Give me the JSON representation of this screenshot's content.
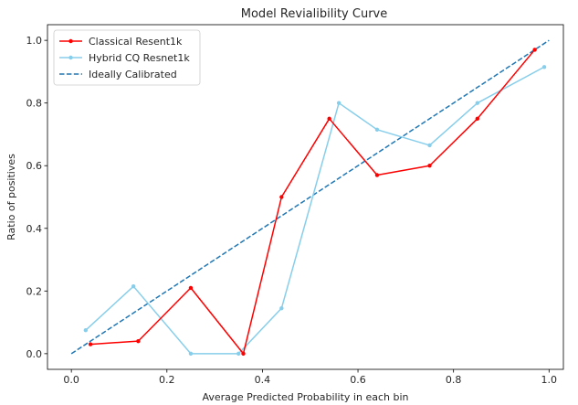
{
  "chart_data": {
    "type": "line",
    "title": "Model Revialibility Curve",
    "xlabel": "Average Predicted Probability in each bin",
    "ylabel": "Ratio of positives",
    "xlim": [
      -0.05,
      1.03
    ],
    "ylim": [
      -0.05,
      1.05
    ],
    "xticks": [
      0.0,
      0.2,
      0.4,
      0.6,
      0.8,
      1.0
    ],
    "xtick_labels": [
      "0.0",
      "0.2",
      "0.4",
      "0.6",
      "0.8",
      "1.0"
    ],
    "yticks": [
      0.0,
      0.2,
      0.4,
      0.6,
      0.8,
      1.0
    ],
    "ytick_labels": [
      "0.0",
      "0.2",
      "0.4",
      "0.6",
      "0.8",
      "1.0"
    ],
    "grid": false,
    "legend_position": "top-left",
    "series": [
      {
        "name": "Classical Resent1k",
        "color": "#ff0000",
        "style": "solid",
        "marker": "dot",
        "x": [
          0.04,
          0.14,
          0.25,
          0.36,
          0.44,
          0.54,
          0.64,
          0.75,
          0.85,
          0.97
        ],
        "y": [
          0.03,
          0.04,
          0.21,
          0.0,
          0.5,
          0.75,
          0.57,
          0.6,
          0.75,
          0.97
        ]
      },
      {
        "name": "Hybrid CQ Resnet1k",
        "color": "#87ceeb",
        "style": "solid",
        "marker": "dot",
        "x": [
          0.03,
          0.13,
          0.25,
          0.35,
          0.44,
          0.56,
          0.64,
          0.75,
          0.85,
          0.99
        ],
        "y": [
          0.075,
          0.215,
          0.0,
          0.0,
          0.145,
          0.8,
          0.715,
          0.665,
          0.8,
          0.915
        ]
      },
      {
        "name": "Ideally Calibrated",
        "color": "#1f77b4",
        "style": "dashed",
        "marker": "none",
        "x": [
          0.0,
          1.0
        ],
        "y": [
          0.0,
          1.0
        ]
      }
    ]
  }
}
